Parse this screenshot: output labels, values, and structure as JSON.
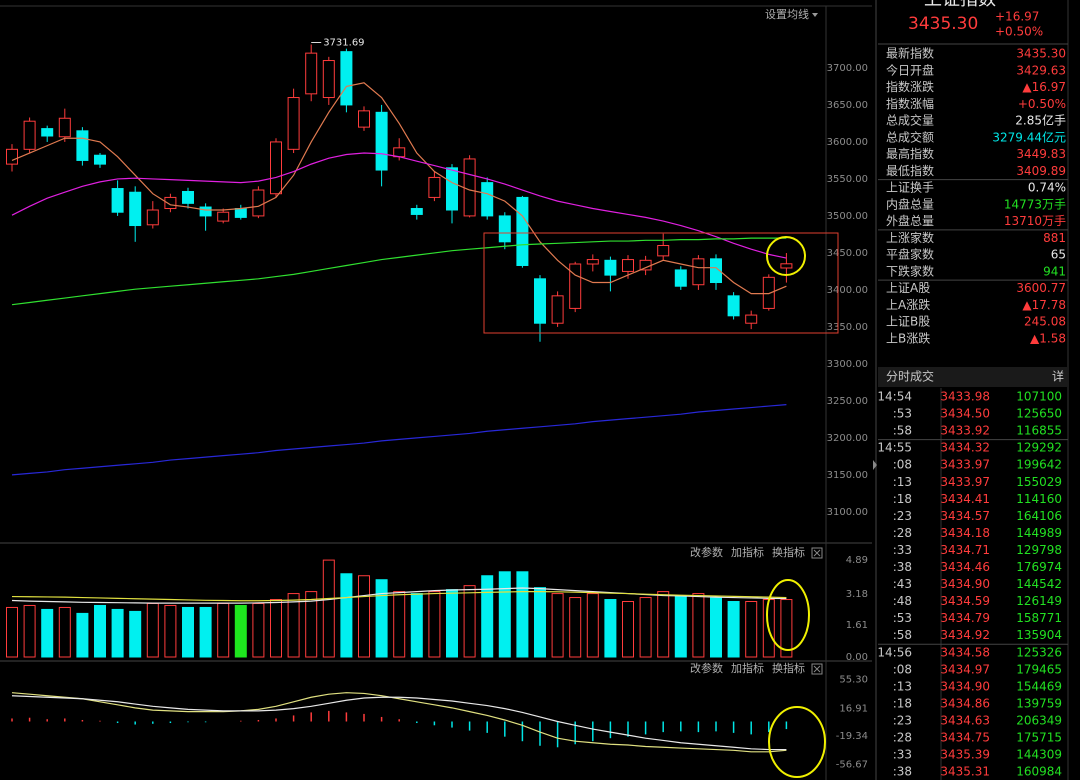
{
  "toolbar": {
    "ma_settings": "设置均线"
  },
  "indicator_tools": [
    "改参数",
    "加指标",
    "换指标"
  ],
  "chart_data": [
    {
      "type": "candlestick",
      "up_color": "#ff3c3c",
      "down_color": "#00f0f0",
      "open": [
        3570,
        3590,
        3618,
        3607,
        3615,
        3582,
        3537,
        3532,
        3488,
        3510,
        3533,
        3512,
        3493,
        3510,
        3500,
        3530,
        3590,
        3665,
        3660,
        3722,
        3620,
        3640,
        3580,
        3510,
        3525,
        3565,
        3500,
        3545,
        3500,
        3525,
        3415,
        3355,
        3375,
        3435,
        3440,
        3425,
        3427,
        3446,
        3427,
        3407,
        3442,
        3392,
        3355,
        3375,
        3429.63
      ],
      "high": [
        3597,
        3633,
        3622,
        3645,
        3620,
        3585,
        3548,
        3540,
        3520,
        3530,
        3538,
        3517,
        3510,
        3515,
        3540,
        3605,
        3672,
        3731.69,
        3715,
        3726,
        3648,
        3650,
        3605,
        3515,
        3560,
        3570,
        3582,
        3552,
        3505,
        3527,
        3420,
        3398,
        3438,
        3448,
        3445,
        3447,
        3446,
        3476,
        3432,
        3447,
        3448,
        3397,
        3372,
        3421,
        3449.83
      ],
      "low": [
        3560,
        3585,
        3600,
        3600,
        3568,
        3565,
        3500,
        3465,
        3483,
        3505,
        3510,
        3480,
        3490,
        3495,
        3497,
        3525,
        3585,
        3655,
        3650,
        3640,
        3615,
        3540,
        3575,
        3495,
        3520,
        3490,
        3498,
        3495,
        3455,
        3430,
        3330,
        3350,
        3370,
        3425,
        3398,
        3415,
        3420,
        3440,
        3400,
        3400,
        3400,
        3360,
        3347,
        3372,
        3409.89
      ],
      "close": [
        3590,
        3628,
        3608,
        3632,
        3575,
        3570,
        3505,
        3487,
        3508,
        3525,
        3517,
        3500,
        3505,
        3498,
        3535,
        3600,
        3660,
        3720,
        3710,
        3650,
        3642,
        3562,
        3592,
        3502,
        3552,
        3508,
        3577,
        3500,
        3465,
        3433,
        3355,
        3392,
        3435,
        3441,
        3420,
        3441,
        3440,
        3460,
        3405,
        3442,
        3410,
        3365,
        3366,
        3417,
        3435.3
      ],
      "lines": [
        {
          "color": "#e07a50",
          "values": [
            3575,
            3585,
            3595,
            3605,
            3605,
            3600,
            3580,
            3555,
            3530,
            3515,
            3512,
            3508,
            3508,
            3510,
            3513,
            3525,
            3555,
            3600,
            3640,
            3675,
            3680,
            3660,
            3625,
            3585,
            3560,
            3545,
            3535,
            3530,
            3520,
            3500,
            3465,
            3440,
            3420,
            3410,
            3410,
            3420,
            3430,
            3440,
            3435,
            3430,
            3430,
            3410,
            3395,
            3395,
            3405
          ]
        },
        {
          "color": "#e020e0",
          "values": [
            3501,
            3513,
            3524,
            3532,
            3540,
            3546,
            3550,
            3551,
            3550,
            3549,
            3548,
            3547,
            3546,
            3545,
            3547,
            3552,
            3560,
            3570,
            3578,
            3583,
            3585,
            3584,
            3580,
            3574,
            3568,
            3562,
            3556,
            3550,
            3543,
            3535,
            3527,
            3520,
            3515,
            3510,
            3506,
            3502,
            3498,
            3493,
            3487,
            3480,
            3472,
            3463,
            3455,
            3448,
            3443
          ]
        },
        {
          "color": "#30e030",
          "values": [
            3380,
            3383,
            3386,
            3389,
            3392,
            3395,
            3398,
            3401,
            3403,
            3405,
            3407,
            3409,
            3411,
            3413,
            3415,
            3418,
            3421,
            3425,
            3429,
            3433,
            3437,
            3441,
            3444,
            3447,
            3450,
            3453,
            3455,
            3457,
            3459,
            3461,
            3462,
            3463,
            3464,
            3465,
            3466,
            3466,
            3467,
            3467,
            3468,
            3468,
            3469,
            3469,
            3470,
            3470,
            3470
          ]
        },
        {
          "color": "#2828d8",
          "values": [
            3150,
            3152,
            3154,
            3157,
            3159,
            3161,
            3163,
            3165,
            3167,
            3170,
            3172,
            3174,
            3176,
            3178,
            3180,
            3183,
            3185,
            3187,
            3189,
            3191,
            3193,
            3196,
            3198,
            3200,
            3202,
            3204,
            3206,
            3209,
            3211,
            3213,
            3215,
            3217,
            3219,
            3222,
            3224,
            3226,
            3228,
            3230,
            3232,
            3235,
            3237,
            3239,
            3241,
            3243,
            3245
          ]
        }
      ],
      "ylim": [
        3062,
        3781
      ],
      "yticks": [
        {
          "value": 3100,
          "label": "3100.00"
        },
        {
          "value": 3150,
          "label": "3150.00"
        },
        {
          "value": 3200,
          "label": "3200.00"
        },
        {
          "value": 3250,
          "label": "3250.00"
        },
        {
          "value": 3300,
          "label": "3300.00"
        },
        {
          "value": 3350,
          "label": "3350.00"
        },
        {
          "value": 3400,
          "label": "3400.00"
        },
        {
          "value": 3450,
          "label": "3450.00"
        },
        {
          "value": 3500,
          "label": "3500.00"
        },
        {
          "value": 3550,
          "label": "3550.00"
        },
        {
          "value": 3600,
          "label": "3600.00"
        },
        {
          "value": 3650,
          "label": "3650.00"
        },
        {
          "value": 3700,
          "label": "3700.00"
        }
      ]
    },
    {
      "type": "bar",
      "hollow_color": "#ff3c3c",
      "values": [
        2.5,
        2.6,
        2.4,
        2.5,
        2.2,
        2.6,
        2.4,
        2.3,
        2.7,
        2.6,
        2.5,
        2.5,
        2.7,
        2.6,
        2.7,
        2.9,
        3.2,
        3.3,
        4.89,
        4.2,
        4.1,
        3.9,
        3.3,
        3.2,
        3.3,
        3.4,
        3.6,
        4.1,
        4.3,
        4.3,
        3.5,
        3.2,
        3.0,
        3.2,
        2.9,
        2.8,
        3.0,
        3.3,
        3.1,
        3.2,
        3.0,
        2.8,
        2.8,
        2.9,
        2.9
      ],
      "colors": [
        "#ff3c3c",
        "#ff3c3c",
        "#00f0f0",
        "#ff3c3c",
        "#00f0f0",
        "#00f0f0",
        "#00f0f0",
        "#00f0f0",
        "#ff3c3c",
        "#ff3c3c",
        "#00f0f0",
        "#00f0f0",
        "#ff3c3c",
        "#1ee61e",
        "#ff3c3c",
        "#ff3c3c",
        "#ff3c3c",
        "#ff3c3c",
        "#ff3c3c",
        "#00f0f0",
        "#ff3c3c",
        "#00f0f0",
        "#ff3c3c",
        "#00f0f0",
        "#ff3c3c",
        "#00f0f0",
        "#ff3c3c",
        "#00f0f0",
        "#00f0f0",
        "#00f0f0",
        "#00f0f0",
        "#ff3c3c",
        "#ff3c3c",
        "#ff3c3c",
        "#00f0f0",
        "#ff3c3c",
        "#ff3c3c",
        "#ff3c3c",
        "#00f0f0",
        "#ff3c3c",
        "#00f0f0",
        "#00f0f0",
        "#ff3c3c",
        "#ff3c3c",
        "#ff3c3c"
      ],
      "lines": [
        {
          "color": "#e8e8e8",
          "values": [
            2.85,
            2.82,
            2.8,
            2.78,
            2.76,
            2.75,
            2.74,
            2.73,
            2.72,
            2.72,
            2.72,
            2.72,
            2.72,
            2.72,
            2.73,
            2.75,
            2.78,
            2.82,
            2.9,
            3.0,
            3.1,
            3.2,
            3.25,
            3.3,
            3.35,
            3.38,
            3.4,
            3.42,
            3.45,
            3.48,
            3.45,
            3.4,
            3.35,
            3.3,
            3.25,
            3.2,
            3.15,
            3.1,
            3.08,
            3.05,
            3.02,
            3.0,
            2.98,
            2.96,
            2.95
          ]
        },
        {
          "color": "#e0e040",
          "values": [
            3.05,
            3.04,
            3.03,
            3.02,
            3.0,
            2.98,
            2.96,
            2.94,
            2.92,
            2.9,
            2.88,
            2.86,
            2.85,
            2.84,
            2.84,
            2.85,
            2.87,
            2.9,
            2.95,
            3.0,
            3.05,
            3.1,
            3.14,
            3.17,
            3.2,
            3.22,
            3.24,
            3.26,
            3.28,
            3.3,
            3.3,
            3.29,
            3.27,
            3.25,
            3.22,
            3.2,
            3.17,
            3.14,
            3.12,
            3.1,
            3.08,
            3.06,
            3.04,
            3.02,
            3.0
          ]
        }
      ],
      "ylim": [
        0,
        5.5
      ],
      "yticks": [
        {
          "value": 0,
          "label": "0.00"
        },
        1.61,
        3.18,
        4.89
      ]
    },
    {
      "type": "macd",
      "pos_color": "#ff3c3c",
      "neg_color": "#00e6e6",
      "values": [
        4,
        5,
        3,
        4,
        2,
        1,
        -2,
        -4,
        -3,
        -2,
        -1,
        -1,
        0,
        1,
        2,
        4,
        8,
        12,
        14,
        12,
        10,
        6,
        3,
        -2,
        -5,
        -8,
        -12,
        -15,
        -20,
        -26,
        -32,
        -34,
        -30,
        -26,
        -22,
        -20,
        -17,
        -14,
        -13,
        -14,
        -13,
        -15,
        -17,
        -14,
        -10
      ],
      "lines": [
        {
          "color": "#e0e080",
          "values": [
            38,
            36,
            34,
            32,
            30,
            26,
            22,
            18,
            15,
            14,
            13,
            13,
            13,
            14,
            16,
            20,
            26,
            32,
            36,
            38,
            37,
            34,
            30,
            26,
            22,
            18,
            13,
            8,
            2,
            -5,
            -14,
            -22,
            -26,
            -28,
            -30,
            -31,
            -33,
            -34,
            -35,
            -36,
            -37,
            -38,
            -40,
            -40,
            -38
          ]
        },
        {
          "color": "#e8e8e8",
          "values": [
            34,
            33,
            32,
            31,
            30,
            28,
            26,
            23,
            20,
            18,
            16,
            15,
            14,
            14,
            14,
            15,
            17,
            20,
            24,
            28,
            31,
            32,
            32,
            31,
            29,
            27,
            24,
            21,
            17,
            12,
            6,
            0,
            -5,
            -10,
            -14,
            -18,
            -22,
            -25,
            -28,
            -30,
            -32,
            -34,
            -36,
            -37,
            -37
          ]
        }
      ],
      "ylim": [
        -60,
        60
      ],
      "yticks": [
        {
          "value": 55.3,
          "label": "55.30"
        },
        16.91,
        -19.34,
        -56.67
      ]
    }
  ],
  "quote_panel": {
    "title": "上证指数",
    "price": "3435.30",
    "change": "+16.97",
    "change_pct": "+0.50%",
    "rows": [
      [
        "最新指数",
        "3435.30"
      ],
      [
        "今日开盘",
        "3429.63"
      ],
      [
        "指数涨跌",
        "▲16.97"
      ],
      [
        "指数涨幅",
        "+0.50%"
      ],
      [
        "总成交量",
        "2.85亿手"
      ],
      [
        "总成交额",
        "3279.44亿元"
      ],
      [
        "最高指数",
        "3449.83"
      ],
      [
        "最低指数",
        "3409.89"
      ],
      [
        "上证换手",
        "0.74%"
      ],
      [
        "内盘总量",
        "14773万手"
      ],
      [
        "外盘总量",
        "13710万手"
      ],
      [
        "上涨家数",
        "881"
      ],
      [
        "平盘家数",
        "65"
      ],
      [
        "下跌家数",
        "941"
      ],
      [
        "上证A股",
        "3600.77"
      ],
      [
        "上A涨跌",
        "▲17.78"
      ],
      [
        "上证B股",
        "245.08"
      ],
      [
        "上B涨跌",
        "▲1.58"
      ]
    ],
    "trades_title": "分时成交",
    "trades_detail": "详",
    "trades": [
      [
        "14:54",
        "3433.98",
        "107100"
      ],
      [
        ":53",
        "3434.50",
        "125650"
      ],
      [
        ":58",
        "3433.92",
        "116855"
      ],
      [
        "14:55",
        "3434.32",
        "129292"
      ],
      [
        ":08",
        "3433.97",
        "199642"
      ],
      [
        ":13",
        "3433.97",
        "155029"
      ],
      [
        ":18",
        "3434.41",
        "114160"
      ],
      [
        ":23",
        "3434.57",
        "164106"
      ],
      [
        ":28",
        "3434.18",
        "144989"
      ],
      [
        ":33",
        "3434.71",
        "129798"
      ],
      [
        ":38",
        "3434.46",
        "176974"
      ],
      [
        ":43",
        "3434.90",
        "144542"
      ],
      [
        ":48",
        "3434.59",
        "126149"
      ],
      [
        ":53",
        "3434.79",
        "158771"
      ],
      [
        ":58",
        "3434.92",
        "135904"
      ],
      [
        "14:56",
        "3434.58",
        "125326"
      ],
      [
        ":08",
        "3434.97",
        "179465"
      ],
      [
        ":13",
        "3434.90",
        "154469"
      ],
      [
        ":18",
        "3434.86",
        "139759"
      ],
      [
        ":23",
        "3434.63",
        "206349"
      ],
      [
        ":28",
        "3434.75",
        "175715"
      ],
      [
        ":33",
        "3435.39",
        "144309"
      ],
      [
        ":38",
        "3435.31",
        "160984"
      ]
    ]
  }
}
